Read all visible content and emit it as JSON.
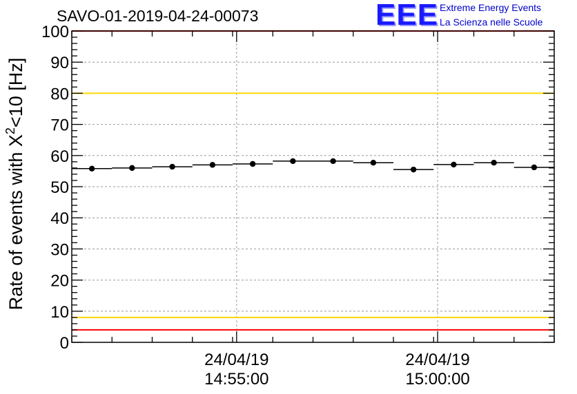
{
  "logo": {
    "mark": "EEE",
    "line1": "Extreme Energy Events",
    "line2": "La Scienza nelle Scuole"
  },
  "colors": {
    "red_line": "#ff0000",
    "yellow_line": "#ffd700",
    "points": "#000000",
    "grid": "#999999"
  },
  "chart_data": {
    "type": "scatter",
    "title": "SAVO-01-2019-04-24-00073",
    "ylabel": "Rate of events with X²<10 [Hz]",
    "ylabel_main": "Rate of events with X",
    "ylabel_sup": "2",
    "ylabel_tail": "<10 [Hz]",
    "ylim": [
      0,
      100
    ],
    "yticks": [
      0,
      10,
      20,
      30,
      40,
      50,
      60,
      70,
      80,
      90,
      100
    ],
    "xlim_min": [
      0,
      12
    ],
    "xticks": [
      {
        "x": 4.1,
        "date": "24/04/19",
        "time": "14:55:00"
      },
      {
        "x": 9.1,
        "date": "24/04/19",
        "time": "15:00:00"
      }
    ],
    "reference_lines": [
      {
        "y": 100,
        "color": "red"
      },
      {
        "y": 80,
        "color": "yellow"
      },
      {
        "y": 8,
        "color": "yellow"
      },
      {
        "y": 4,
        "color": "red"
      }
    ],
    "bin_width_min": 1,
    "x": [
      0.5,
      1.5,
      2.5,
      3.5,
      4.5,
      5.5,
      6.5,
      7.5,
      8.5,
      9.5,
      10.5,
      11.5
    ],
    "values": [
      55.8,
      56.0,
      56.4,
      57.0,
      57.3,
      58.2,
      58.2,
      57.7,
      55.5,
      57.1,
      57.7,
      56.2
    ]
  }
}
